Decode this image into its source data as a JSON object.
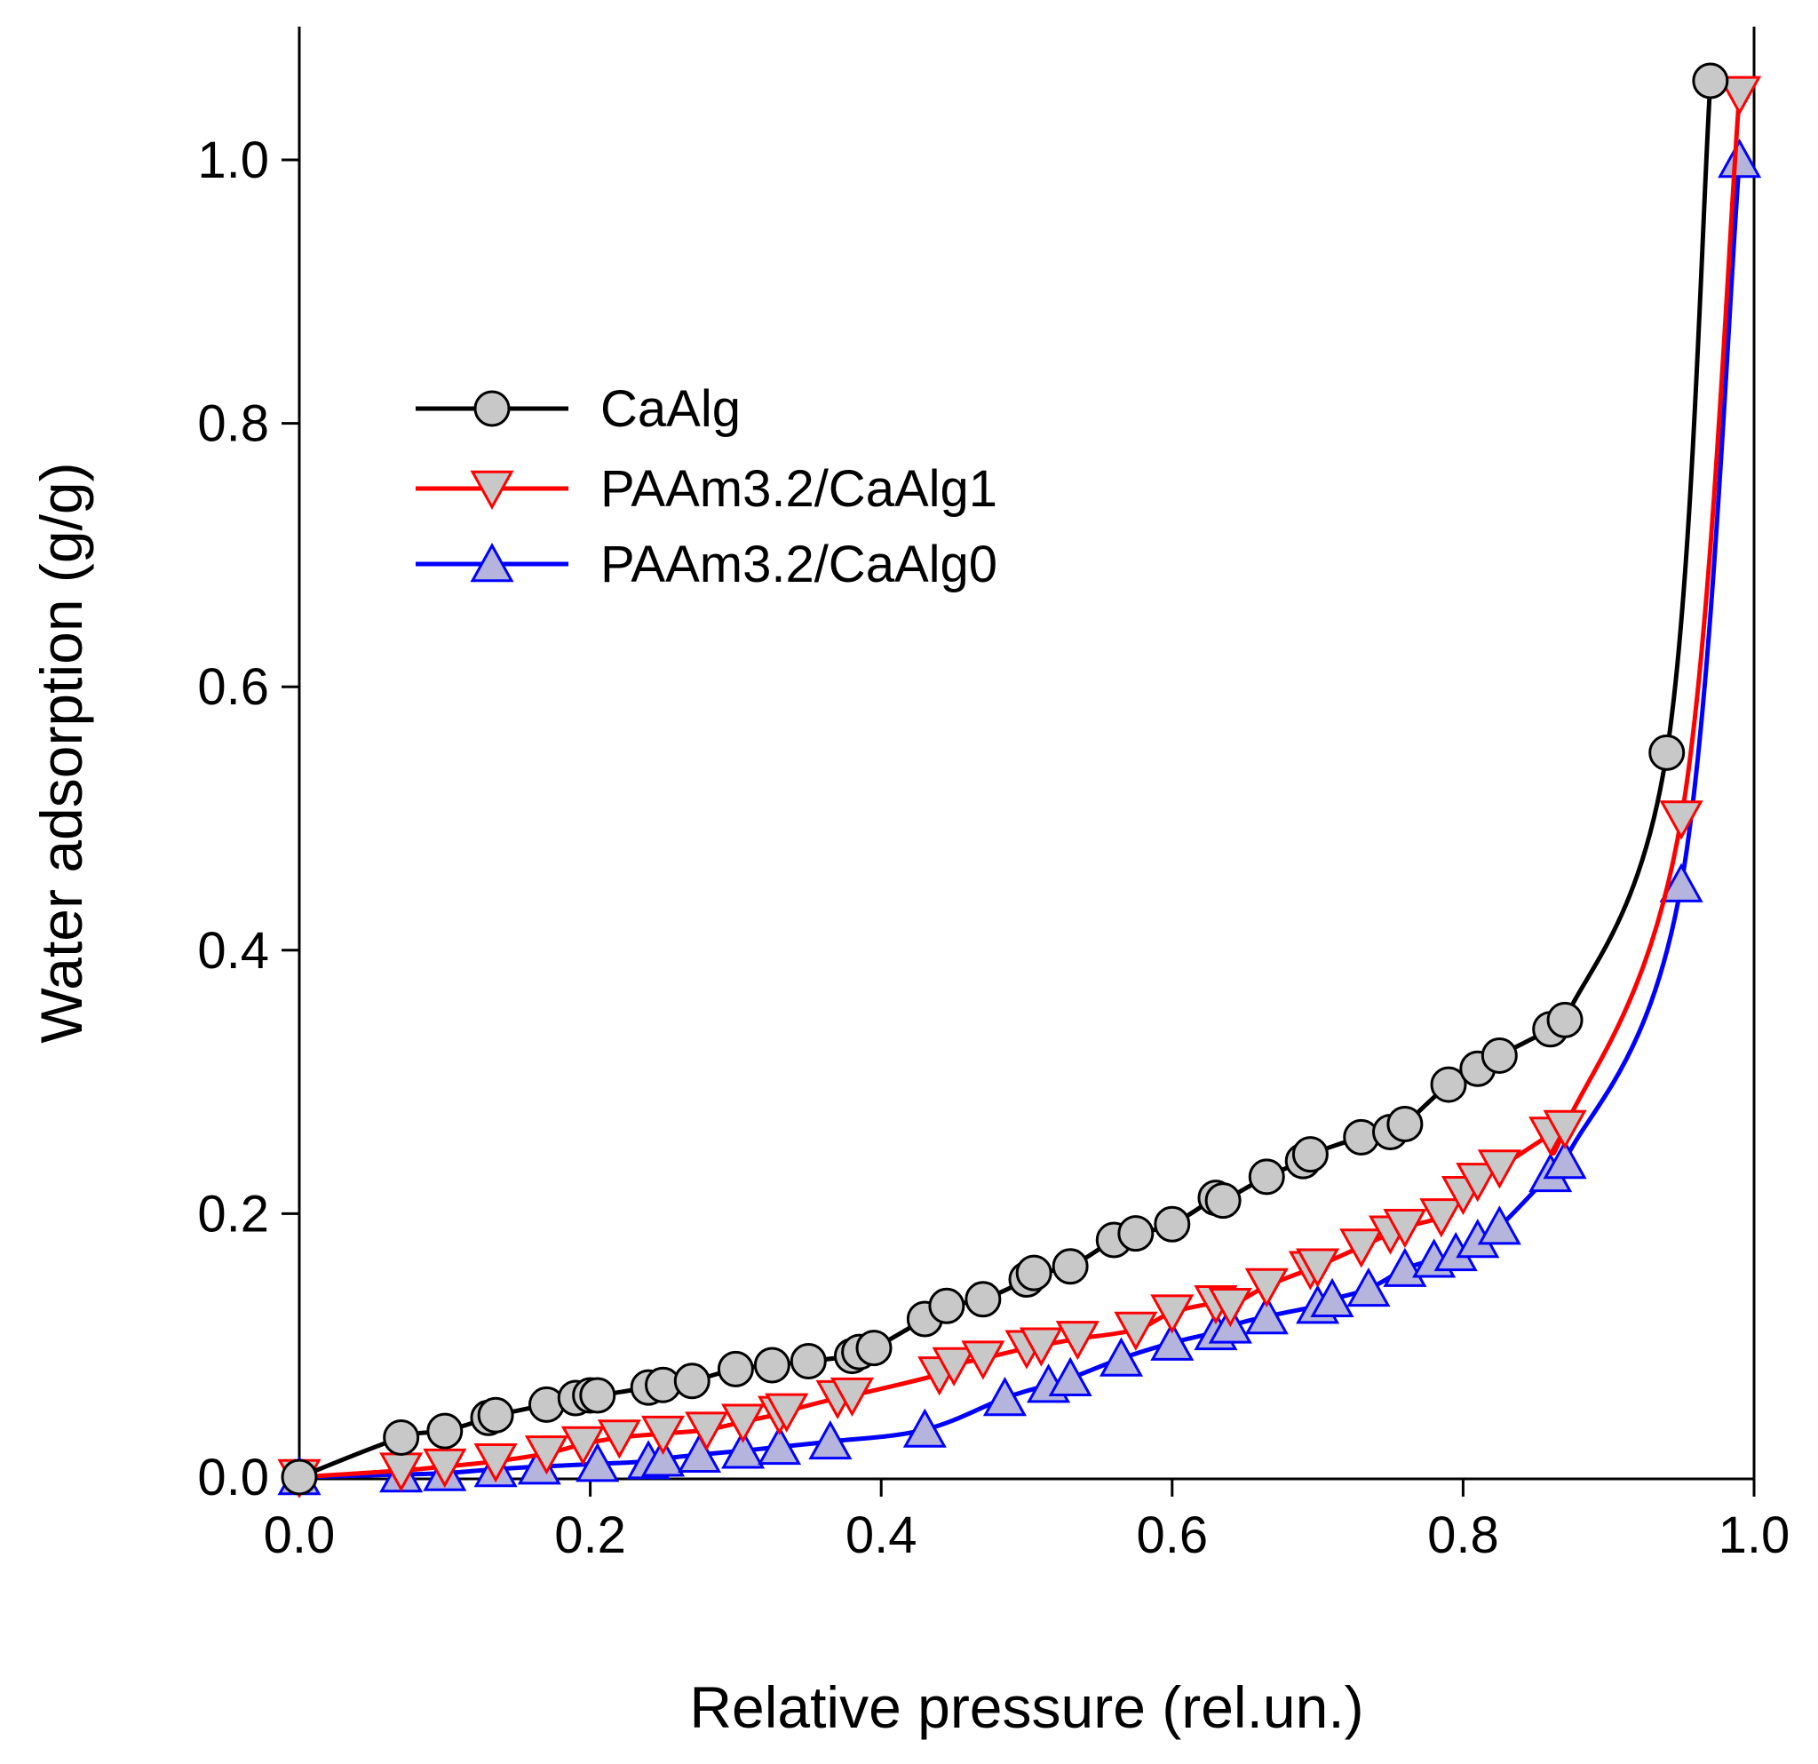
{
  "chart_data": {
    "type": "line",
    "title": "",
    "xlabel": "Relative pressure (rel.un.)",
    "ylabel": "Water adsorption (g/g)",
    "xlim": [
      0,
      1
    ],
    "ylim": [
      0,
      1.1
    ],
    "xticks": [
      0.0,
      0.2,
      0.4,
      0.6,
      0.8,
      1.0
    ],
    "yticks": [
      0.0,
      0.2,
      0.4,
      0.6,
      0.8,
      1.0
    ],
    "xtick_labels": [
      "0.0",
      "0.2",
      "0.4",
      "0.6",
      "0.8",
      "1.0"
    ],
    "ytick_labels": [
      "0.0",
      "0.2",
      "0.4",
      "0.6",
      "0.8",
      "1.0"
    ],
    "grid": false,
    "legend_position": "upper-left",
    "series": [
      {
        "name": "CaAlg",
        "marker": "circle",
        "line_color": "#000000",
        "marker_fill": "#c8c8c8",
        "marker_edge": "#000000",
        "x": [
          0.0,
          0.07,
          0.1,
          0.13,
          0.135,
          0.17,
          0.19,
          0.2,
          0.205,
          0.24,
          0.25,
          0.27,
          0.3,
          0.325,
          0.35,
          0.38,
          0.385,
          0.395,
          0.43,
          0.445,
          0.47,
          0.5,
          0.505,
          0.53,
          0.56,
          0.575,
          0.6,
          0.63,
          0.635,
          0.665,
          0.69,
          0.695,
          0.73,
          0.75,
          0.76,
          0.79,
          0.81,
          0.825,
          0.86,
          0.87,
          0.94,
          0.97
        ],
        "y": [
          0.0,
          0.03,
          0.035,
          0.045,
          0.047,
          0.055,
          0.06,
          0.062,
          0.062,
          0.068,
          0.07,
          0.073,
          0.082,
          0.085,
          0.088,
          0.092,
          0.095,
          0.098,
          0.12,
          0.13,
          0.135,
          0.15,
          0.155,
          0.16,
          0.18,
          0.185,
          0.192,
          0.212,
          0.21,
          0.228,
          0.24,
          0.245,
          0.258,
          0.262,
          0.268,
          0.298,
          0.31,
          0.32,
          0.34,
          0.347,
          0.55,
          1.06
        ]
      },
      {
        "name": "PAAm3.2/CaAlg1",
        "marker": "triangle-down",
        "line_color": "#ff0000",
        "marker_fill": "#c8c8c8",
        "marker_edge": "#ff0000",
        "x": [
          0.0,
          0.07,
          0.1,
          0.135,
          0.17,
          0.195,
          0.22,
          0.25,
          0.28,
          0.305,
          0.33,
          0.335,
          0.37,
          0.38,
          0.44,
          0.45,
          0.47,
          0.5,
          0.51,
          0.535,
          0.575,
          0.6,
          0.63,
          0.64,
          0.665,
          0.695,
          0.7,
          0.73,
          0.75,
          0.76,
          0.785,
          0.8,
          0.81,
          0.825,
          0.86,
          0.87,
          0.95,
          0.99
        ],
        "y": [
          0.0,
          0.005,
          0.008,
          0.012,
          0.018,
          0.025,
          0.03,
          0.033,
          0.036,
          0.042,
          0.048,
          0.05,
          0.06,
          0.062,
          0.078,
          0.085,
          0.09,
          0.098,
          0.1,
          0.105,
          0.112,
          0.125,
          0.132,
          0.13,
          0.145,
          0.158,
          0.16,
          0.175,
          0.185,
          0.19,
          0.198,
          0.215,
          0.225,
          0.235,
          0.26,
          0.265,
          0.5,
          1.05
        ]
      },
      {
        "name": "PAAm3.2/CaAlg0",
        "marker": "triangle-up",
        "line_color": "#0000ff",
        "marker_fill": "#b4b4dc",
        "marker_edge": "#0000ff",
        "x": [
          0.0,
          0.07,
          0.1,
          0.135,
          0.165,
          0.205,
          0.24,
          0.25,
          0.275,
          0.305,
          0.33,
          0.365,
          0.43,
          0.485,
          0.515,
          0.53,
          0.565,
          0.6,
          0.63,
          0.64,
          0.665,
          0.7,
          0.71,
          0.735,
          0.76,
          0.78,
          0.795,
          0.81,
          0.825,
          0.86,
          0.87,
          0.95,
          0.99
        ],
        "y": [
          0.0,
          0.002,
          0.003,
          0.006,
          0.008,
          0.01,
          0.012,
          0.014,
          0.017,
          0.02,
          0.023,
          0.027,
          0.036,
          0.06,
          0.07,
          0.075,
          0.09,
          0.102,
          0.11,
          0.115,
          0.122,
          0.13,
          0.135,
          0.143,
          0.158,
          0.165,
          0.17,
          0.18,
          0.19,
          0.23,
          0.24,
          0.45,
          1.0
        ]
      }
    ]
  }
}
